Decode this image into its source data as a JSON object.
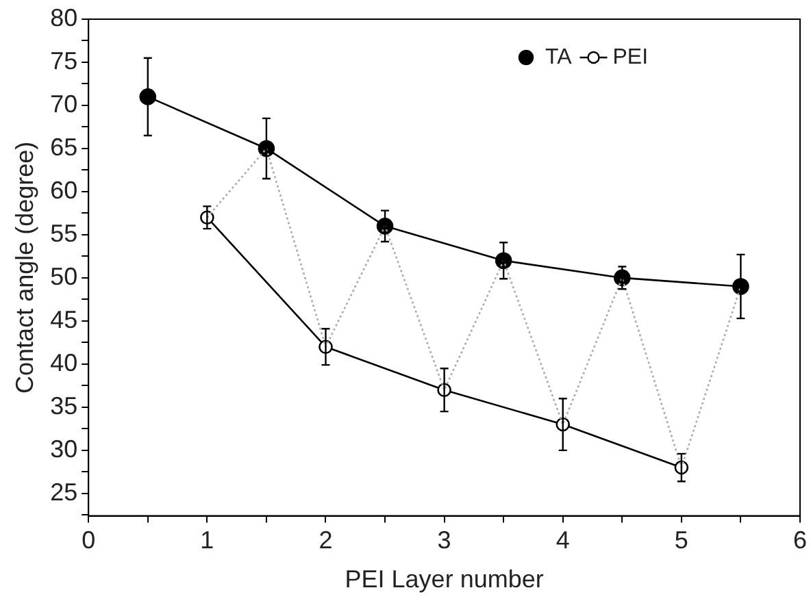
{
  "chart_data": {
    "type": "line",
    "xlabel": "PEI Layer number",
    "ylabel": "Contact angle (degree)",
    "xlim": [
      0,
      6
    ],
    "xticks": [
      0,
      {
        "value": 0.5,
        "label": null
      },
      1,
      {
        "value": 1.5,
        "label": null
      },
      2,
      {
        "value": 2.5,
        "label": null
      },
      3,
      {
        "value": 3.5,
        "label": null
      },
      4,
      {
        "value": 4.5,
        "label": null
      },
      5,
      {
        "value": 5.5,
        "label": null
      },
      6
    ],
    "ylim": [
      22.4,
      80
    ],
    "yticks": [
      {
        "value": 22.5,
        "label": null
      },
      25,
      {
        "value": 27.5,
        "label": null
      },
      30,
      {
        "value": 32.5,
        "label": null
      },
      35,
      {
        "value": 37.5,
        "label": null
      },
      40,
      {
        "value": 42.5,
        "label": null
      },
      45,
      {
        "value": 47.5,
        "label": null
      },
      50,
      {
        "value": 52.5,
        "label": null
      },
      55,
      {
        "value": 57.5,
        "label": null
      },
      60,
      {
        "value": 62.5,
        "label": null
      },
      65,
      {
        "value": 67.5,
        "label": null
      },
      70,
      {
        "value": 72.5,
        "label": null
      },
      75,
      {
        "value": 77.5,
        "label": null
      },
      80
    ],
    "grid": false,
    "legend": "top right",
    "marker": "circle",
    "line_style": "solid",
    "series": [
      {
        "name": "TA",
        "color": "#000000",
        "x": [
          0.5,
          1.5,
          2.5,
          3.5,
          4.5,
          5.5
        ],
        "values": [
          71,
          65,
          56,
          52,
          50,
          49
        ],
        "errors": [
          4.5,
          3.5,
          1.8,
          2.1,
          1.3,
          3.7
        ]
      },
      {
        "name": "PEI",
        "color": "#000000",
        "x": [
          1,
          2,
          3,
          4,
          5
        ],
        "values": [
          57,
          42,
          37,
          33,
          28
        ],
        "errors": [
          1.3,
          2.1,
          2.5,
          3,
          1.6
        ]
      },
      {
        "color": "#aaaaaa",
        "line_style": "dotted",
        "marker": "none",
        "x": [
          1,
          1.5,
          2,
          2.5,
          3,
          3.5,
          4,
          4.5,
          5,
          5.5
        ],
        "values": [
          57,
          65,
          42,
          56,
          37,
          52,
          33,
          50,
          28,
          49
        ]
      }
    ]
  }
}
